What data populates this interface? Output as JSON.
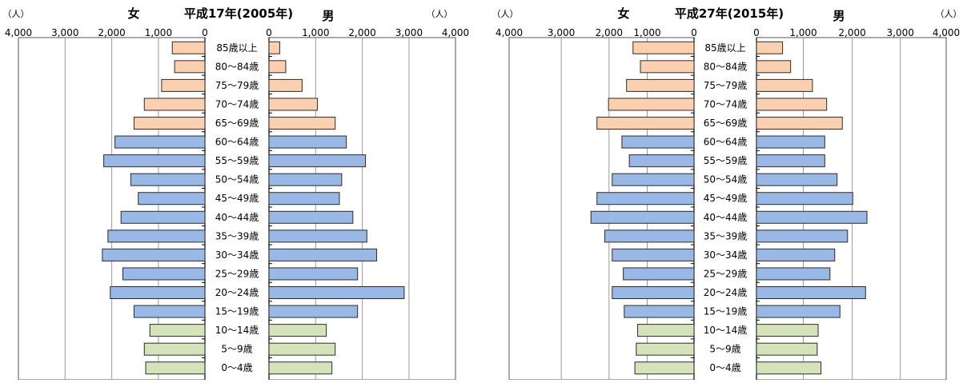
{
  "colors": {
    "elderly": "#fbd0b0",
    "working": "#99b8e6",
    "young": "#d5e3ba",
    "bar_stroke": "#2b2b2b",
    "grid": "#9a9a9a"
  },
  "chart_data": [
    {
      "type": "bar",
      "title": "平成17年(2005年)",
      "left_label": "女",
      "right_label": "男",
      "unit_left": "（人）",
      "unit_right": "（人）",
      "left_ticks": [
        "4,000",
        "3,000",
        "2,000",
        "1,000",
        "0"
      ],
      "right_ticks": [
        "0",
        "1,000",
        "2,000",
        "3,000",
        "4,000"
      ],
      "xlim": [
        0,
        4000
      ],
      "categories": [
        "85歳以上",
        "80～84歳",
        "75～79歳",
        "70～74歳",
        "65～69歳",
        "60～64歳",
        "55～59歳",
        "50～54歳",
        "45～49歳",
        "40～44歳",
        "35～39歳",
        "30～34歳",
        "25～29歳",
        "20～24歳",
        "15～19歳",
        "10～14歳",
        "5～9歳",
        "0～4歳"
      ],
      "groups": [
        "elderly",
        "elderly",
        "elderly",
        "elderly",
        "elderly",
        "working",
        "working",
        "working",
        "working",
        "working",
        "working",
        "working",
        "working",
        "working",
        "working",
        "young",
        "young",
        "young"
      ],
      "series": [
        {
          "name": "女",
          "values": [
            700,
            650,
            930,
            1300,
            1520,
            1930,
            2170,
            1590,
            1430,
            1800,
            2080,
            2200,
            1760,
            2030,
            1520,
            1180,
            1300,
            1270
          ]
        },
        {
          "name": "男",
          "values": [
            230,
            360,
            710,
            1040,
            1420,
            1660,
            2070,
            1560,
            1510,
            1800,
            2100,
            2310,
            1900,
            2900,
            1900,
            1230,
            1420,
            1350
          ]
        }
      ],
      "grid": true
    },
    {
      "type": "bar",
      "title": "平成27年(2015年)",
      "left_label": "女",
      "right_label": "男",
      "unit_left": "（人）",
      "unit_right": "（人）",
      "left_ticks": [
        "4,000",
        "3,000",
        "2,000",
        "1,000",
        "0"
      ],
      "right_ticks": [
        "0",
        "1,000",
        "2,000",
        "3,000",
        "4,000"
      ],
      "xlim": [
        0,
        4000
      ],
      "categories": [
        "85歳以上",
        "80～84歳",
        "75～79歳",
        "70～74歳",
        "65～69歳",
        "60～64歳",
        "55～59歳",
        "50～54歳",
        "45～49歳",
        "40～44歳",
        "35～39歳",
        "30～34歳",
        "25～29歳",
        "20～24歳",
        "15～19歳",
        "10～14歳",
        "5～9歳",
        "0～4歳"
      ],
      "groups": [
        "elderly",
        "elderly",
        "elderly",
        "elderly",
        "elderly",
        "working",
        "working",
        "working",
        "working",
        "working",
        "working",
        "working",
        "working",
        "working",
        "working",
        "young",
        "young",
        "young"
      ],
      "series": [
        {
          "name": "女",
          "values": [
            1320,
            1160,
            1460,
            1850,
            2100,
            1560,
            1400,
            1770,
            2100,
            2230,
            1930,
            1770,
            1530,
            1770,
            1510,
            1220,
            1250,
            1280
          ]
        },
        {
          "name": "男",
          "values": [
            550,
            720,
            1180,
            1480,
            1810,
            1440,
            1440,
            1700,
            2030,
            2330,
            1920,
            1650,
            1550,
            2300,
            1760,
            1300,
            1280,
            1360
          ]
        }
      ],
      "grid": true
    }
  ]
}
